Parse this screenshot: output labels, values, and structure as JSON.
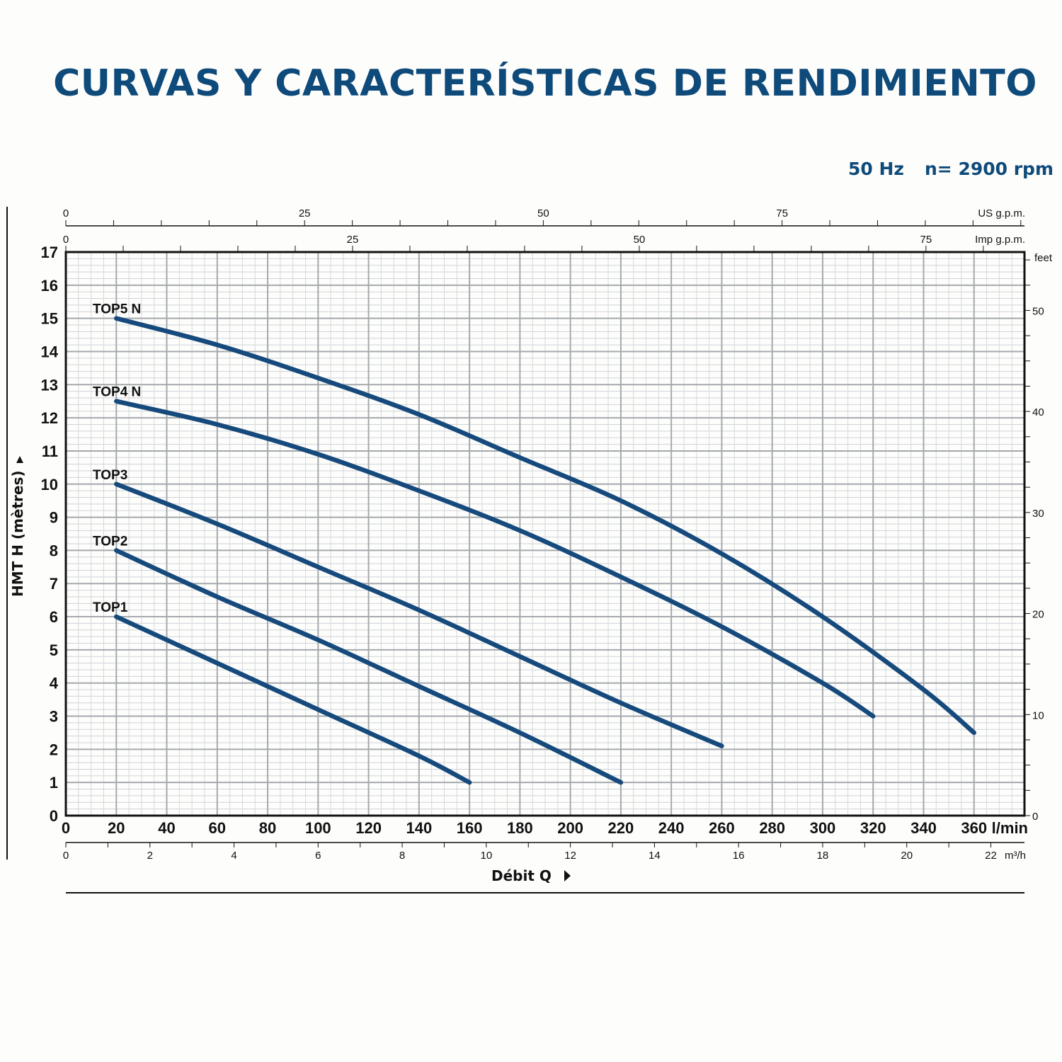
{
  "header": {
    "title": "CURVAS Y CARACTERÍSTICAS DE RENDIMIENTO",
    "frequency": "50 Hz",
    "speed": "n= 2900 rpm"
  },
  "chart_data": {
    "type": "line",
    "title": "CURVAS Y CARACTERÍSTICAS DE RENDIMIENTO",
    "xlabel": "Débit Q",
    "ylabel": "HMT H (mètres)",
    "xunit": "l/min",
    "xlim": [
      0,
      380
    ],
    "ylim": [
      0,
      17
    ],
    "x_ticks": [
      0,
      20,
      40,
      60,
      80,
      100,
      120,
      140,
      160,
      180,
      200,
      220,
      240,
      260,
      280,
      300,
      320,
      340,
      360
    ],
    "y_ticks": [
      0,
      1,
      2,
      3,
      4,
      5,
      6,
      7,
      8,
      9,
      10,
      11,
      12,
      13,
      14,
      15,
      16,
      17
    ],
    "grid": true,
    "line_color": "#164a7c",
    "secondary_axes": {
      "us_gpm": {
        "label": "US g.p.m.",
        "ticks": [
          0,
          25,
          50,
          75
        ]
      },
      "imp_gpm": {
        "label": "Imp g.p.m.",
        "ticks": [
          0,
          25,
          50,
          75
        ]
      },
      "m3h": {
        "label": "m³/h",
        "ticks": [
          0,
          2,
          4,
          6,
          8,
          10,
          12,
          14,
          16,
          18,
          20,
          22
        ]
      },
      "feet": {
        "label": "feet",
        "ticks": [
          0,
          10,
          20,
          30,
          40,
          50
        ]
      }
    },
    "series": [
      {
        "name": "TOP5 N",
        "x": [
          20,
          60,
          100,
          140,
          180,
          220,
          260,
          300,
          340,
          360
        ],
        "y": [
          15.0,
          14.2,
          13.2,
          12.1,
          10.8,
          9.5,
          7.9,
          6.0,
          3.8,
          2.5
        ]
      },
      {
        "name": "TOP4 N",
        "x": [
          20,
          60,
          100,
          140,
          180,
          220,
          260,
          300,
          320
        ],
        "y": [
          12.5,
          11.8,
          10.9,
          9.8,
          8.6,
          7.2,
          5.7,
          4.0,
          3.0
        ]
      },
      {
        "name": "TOP3",
        "x": [
          20,
          60,
          100,
          140,
          180,
          220,
          260
        ],
        "y": [
          10.0,
          8.8,
          7.5,
          6.2,
          4.8,
          3.4,
          2.1
        ]
      },
      {
        "name": "TOP2",
        "x": [
          20,
          60,
          100,
          140,
          180,
          220
        ],
        "y": [
          8.0,
          6.6,
          5.3,
          3.9,
          2.5,
          1.0
        ]
      },
      {
        "name": "TOP1",
        "x": [
          20,
          60,
          100,
          140,
          160
        ],
        "y": [
          6.0,
          4.6,
          3.2,
          1.8,
          1.0
        ]
      }
    ]
  }
}
